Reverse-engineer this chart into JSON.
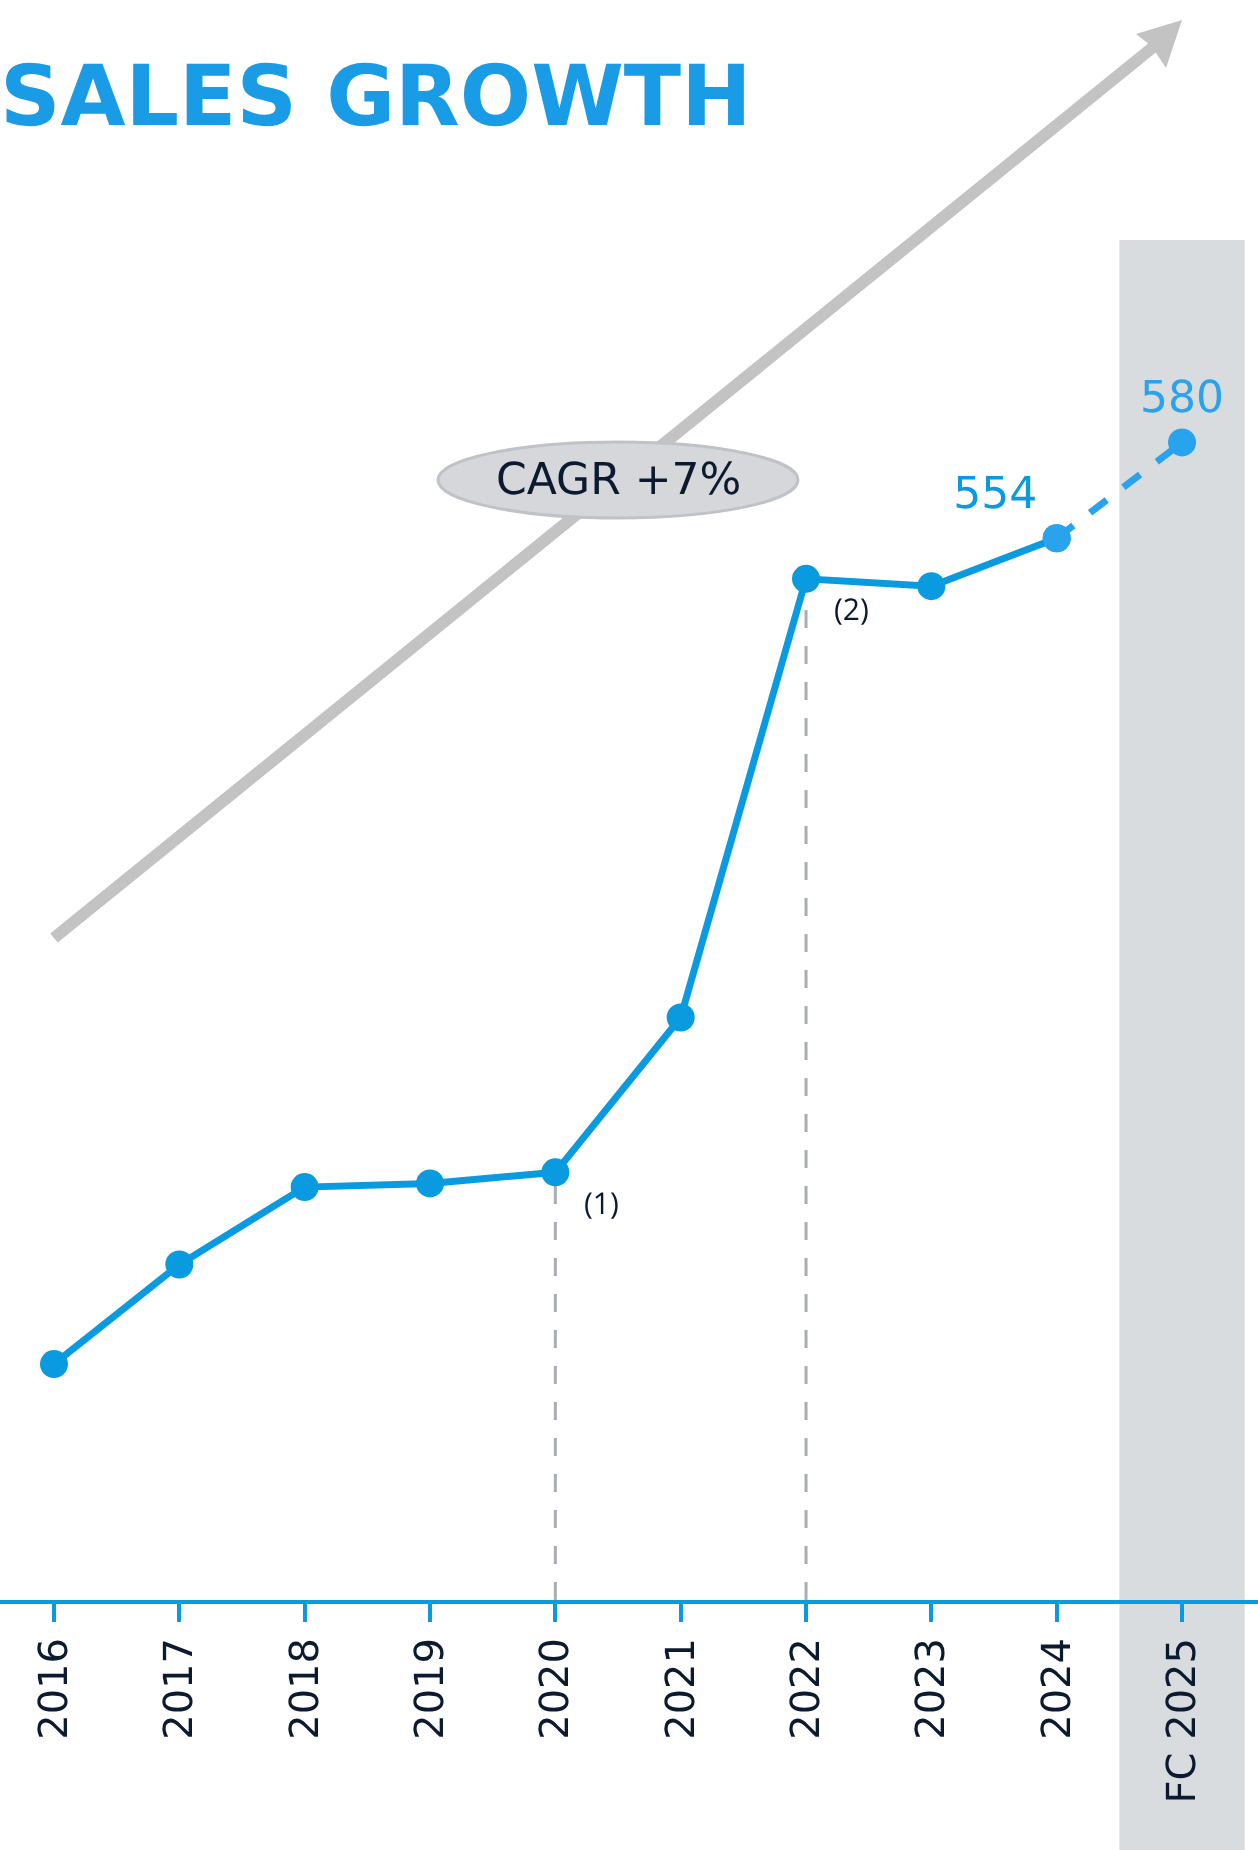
{
  "chart_data": {
    "type": "line",
    "title": "SALES GROWTH",
    "categories": [
      "2016",
      "2017",
      "2018",
      "2019",
      "2020",
      "2021",
      "2022",
      "2023",
      "2024",
      "FC 2025"
    ],
    "series": [
      {
        "color": "#0a9ae0",
        "line_style": "solid",
        "values": [
          330,
          357,
          378,
          379,
          382,
          424,
          543,
          541,
          554,
          null
        ],
        "value_labels": [
          null,
          null,
          null,
          null,
          null,
          null,
          null,
          null,
          "554",
          null
        ]
      },
      {
        "color": "#2aa3ef",
        "line_style": "dashed",
        "values": [
          null,
          null,
          null,
          null,
          null,
          null,
          null,
          null,
          554,
          580
        ],
        "value_labels": [
          null,
          null,
          null,
          null,
          null,
          null,
          null,
          null,
          null,
          "580"
        ]
      }
    ],
    "tick_labels": "x",
    "marker": "circle",
    "annotations": [
      "CAGR +7%"
    ],
    "ref_lines": [
      {
        "axis": "x",
        "value": "2020",
        "label": "(1)",
        "color": "#a9aeb4",
        "line_style": "dashed"
      },
      {
        "axis": "x",
        "value": "2022",
        "label": "(2)",
        "color": "#a9aeb4",
        "line_style": "dashed"
      }
    ],
    "bands": [
      {
        "axis": "x",
        "from": "FC 2025",
        "to": "FC 2025",
        "color": "#d9dcdf"
      }
    ]
  }
}
